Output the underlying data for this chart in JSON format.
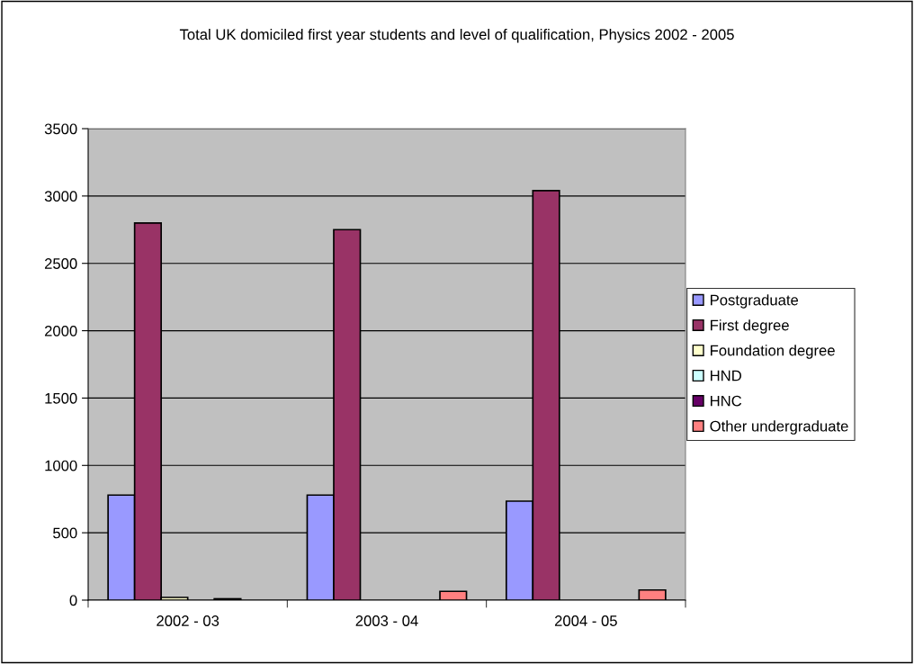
{
  "chart_data": {
    "type": "bar",
    "title": "Total UK domiciled first year students and level of qualification, Physics 2002 - 2005",
    "categories": [
      "2002 - 03",
      "2003 - 04",
      "2004 - 05"
    ],
    "series": [
      {
        "name": "Postgraduate",
        "color": "#9999ff",
        "values": [
          780,
          780,
          735
        ]
      },
      {
        "name": "First degree",
        "color": "#993366",
        "values": [
          2800,
          2750,
          3040
        ]
      },
      {
        "name": "Foundation degree",
        "color": "#ffffcc",
        "values": [
          20,
          null,
          null
        ]
      },
      {
        "name": "HND",
        "color": "#ccffff",
        "values": [
          null,
          null,
          null
        ]
      },
      {
        "name": "HNC",
        "color": "#660066",
        "values": [
          10,
          null,
          null
        ]
      },
      {
        "name": "Other undergraduate",
        "color": "#ff8080",
        "values": [
          null,
          65,
          75
        ]
      }
    ],
    "ylim": [
      0,
      3500
    ],
    "yticks": [
      0,
      500,
      1000,
      1500,
      2000,
      2500,
      3000,
      3500
    ],
    "grid": "y",
    "legend": "right"
  }
}
